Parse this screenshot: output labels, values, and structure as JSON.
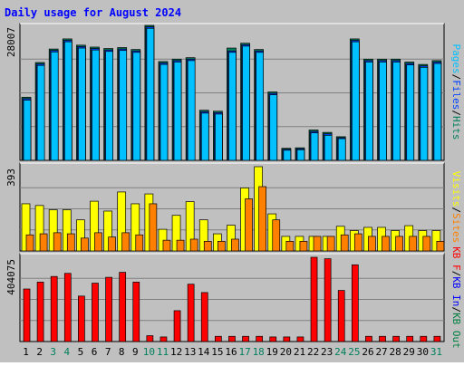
{
  "title": "Daily usage for August 2024",
  "colors": {
    "background": "#c0c0c0",
    "title": "#0000ff",
    "hits": "#00805c",
    "files": "#0040ff",
    "pages": "#00c0ff",
    "visits": "#ffff00",
    "sites": "#ff8000",
    "kb_in": "#0000ff",
    "kb_out": "#008040",
    "kb_f": "#ff0000",
    "weekend_label": "#00805c",
    "grid": "#808080"
  },
  "chart_data": [
    {
      "type": "bar",
      "panel": "hits_files_pages",
      "y_max_label": "28007",
      "ylim": [
        0,
        28007
      ],
      "legend": [
        "Pages",
        "/",
        "Files",
        "/",
        "Hits"
      ],
      "categories": [
        "1",
        "2",
        "3",
        "4",
        "5",
        "6",
        "7",
        "8",
        "9",
        "10",
        "11",
        "12",
        "13",
        "14",
        "15",
        "16",
        "17",
        "18",
        "19",
        "20",
        "21",
        "22",
        "23",
        "24",
        "25",
        "26",
        "27",
        "28",
        "29",
        "30",
        "31"
      ],
      "weekend": [
        "3",
        "4",
        "10",
        "11",
        "17",
        "18",
        "24",
        "25",
        "31"
      ],
      "series": [
        {
          "name": "Hits",
          "values": [
            13100,
            20300,
            23100,
            25200,
            23900,
            23500,
            23200,
            23400,
            23000,
            28007,
            20500,
            21000,
            21300,
            10400,
            10200,
            23300,
            24300,
            23000,
            14200,
            2500,
            2600,
            6300,
            5800,
            4900,
            25200,
            21000,
            21000,
            21000,
            20400,
            19900,
            20700
          ]
        },
        {
          "name": "Files",
          "values": [
            12800,
            20000,
            22800,
            24900,
            23600,
            23200,
            22900,
            23100,
            22700,
            27700,
            20200,
            20700,
            21000,
            10100,
            9900,
            22700,
            24000,
            22700,
            13900,
            2300,
            2400,
            6000,
            5500,
            4700,
            24900,
            20700,
            20700,
            20700,
            20100,
            19600,
            20400
          ]
        },
        {
          "name": "Pages",
          "values": [
            12500,
            19700,
            22500,
            24600,
            23300,
            22900,
            22600,
            22800,
            22400,
            27400,
            19900,
            20400,
            20700,
            9800,
            9600,
            22400,
            23700,
            22400,
            13600,
            2100,
            2200,
            5700,
            5200,
            4500,
            24600,
            20400,
            20400,
            20400,
            19800,
            19300,
            20100
          ]
        }
      ]
    },
    {
      "type": "bar",
      "panel": "visits_sites",
      "y_max_label": "393",
      "ylim": [
        0,
        393
      ],
      "legend": [
        "Visits",
        "/",
        "Sites"
      ],
      "categories": [
        "1",
        "2",
        "3",
        "4",
        "5",
        "6",
        "7",
        "8",
        "9",
        "10",
        "11",
        "12",
        "13",
        "14",
        "15",
        "16",
        "17",
        "18",
        "19",
        "20",
        "21",
        "22",
        "23",
        "24",
        "25",
        "26",
        "27",
        "28",
        "29",
        "30",
        "31"
      ],
      "series": [
        {
          "name": "Visits",
          "values": [
            220,
            212,
            192,
            192,
            145,
            232,
            186,
            275,
            220,
            266,
            101,
            166,
            230,
            145,
            80,
            120,
            294,
            393,
            173,
            68,
            68,
            68,
            68,
            115,
            95,
            110,
            110,
            95,
            118,
            95,
            95
          ]
        },
        {
          "name": "Sites",
          "values": [
            75,
            80,
            85,
            80,
            60,
            85,
            65,
            85,
            75,
            220,
            50,
            50,
            55,
            45,
            45,
            55,
            243,
            300,
            145,
            45,
            45,
            68,
            68,
            75,
            80,
            68,
            68,
            68,
            68,
            68,
            45
          ]
        }
      ]
    },
    {
      "type": "bar",
      "panel": "kbytes",
      "y_max_label": "404075",
      "ylim": [
        0,
        404075
      ],
      "legend": [
        "KB F",
        "/",
        "KB In",
        "/",
        "KB Out"
      ],
      "categories": [
        "1",
        "2",
        "3",
        "4",
        "5",
        "6",
        "7",
        "8",
        "9",
        "10",
        "11",
        "12",
        "13",
        "14",
        "15",
        "16",
        "17",
        "18",
        "19",
        "20",
        "21",
        "22",
        "23",
        "24",
        "25",
        "26",
        "27",
        "28",
        "29",
        "30",
        "31"
      ],
      "series": [
        {
          "name": "KB F",
          "values": [
            252000,
            285000,
            312000,
            327000,
            218000,
            280000,
            308000,
            332000,
            285000,
            28000,
            22000,
            148000,
            275000,
            235000,
            25000,
            25000,
            25000,
            25000,
            22000,
            22000,
            22000,
            404075,
            397000,
            245000,
            368000,
            25000,
            25000,
            25000,
            25000,
            25000,
            25000
          ]
        }
      ]
    }
  ]
}
